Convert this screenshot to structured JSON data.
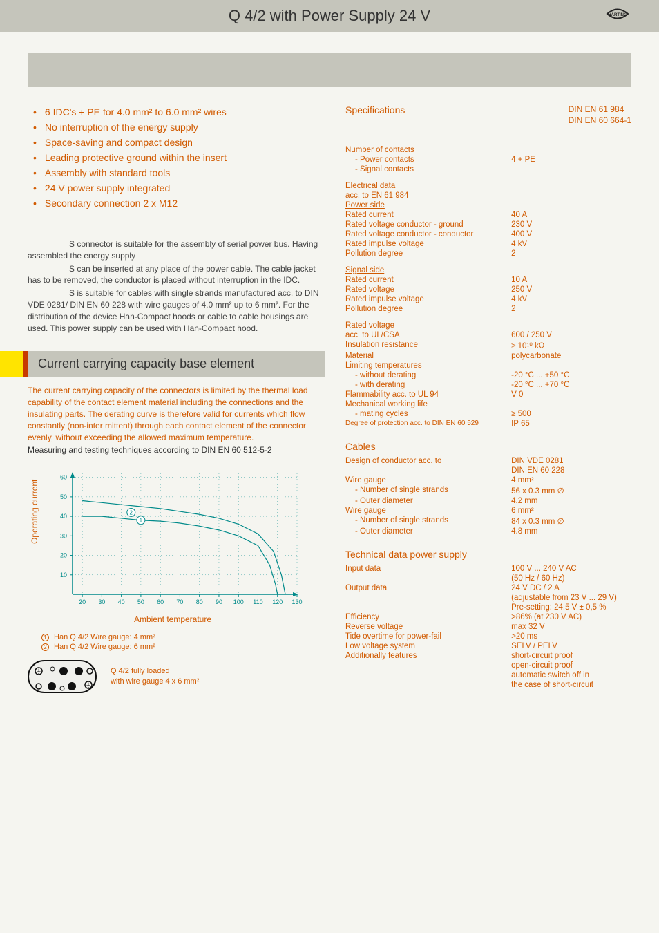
{
  "title": "Q 4/2 with Power Supply 24 V",
  "brand": "HARTING",
  "bullets": [
    "6 IDC's + PE for 4.0 mm² to 6.0 mm² wires",
    "No interruption of the energy supply",
    "Space-saving and compact design",
    "Leading protective ground within the insert",
    "Assembly with standard tools",
    "24 V power supply integrated",
    "Secondary connection 2 x M12"
  ],
  "description": {
    "p1": "S connector is suitable for the assembly of serial power bus. Having assembled the energy supply",
    "p2": "S can be inserted at any place of the power cable. The cable jacket has to be removed, the conductor is placed without interruption in the IDC.",
    "p3": "S is suitable for cables with single strands manufactured acc. to DIN VDE 0281/ DIN EN 60 228 with wire gauges of 4.0 mm² up to 6 mm². For the distribution of the device Han-Compact   hoods or cable to cable housings are used. This power supply can be used with Han-Compact   hood."
  },
  "section_current": {
    "title": "Current carrying capacity base element",
    "para1": "The current carrying capacity of the connectors is limited by the thermal load capability of the contact element material including the connections and the insulating parts. The derating curve is therefore valid for currents which flow constantly (non-inter mittent) through each contact element of the connector evenly, without exceeding the allowed maximum temperature.",
    "para2": "Measuring and testing techniques according to DIN EN 60 512-5-2"
  },
  "chart": {
    "type": "line",
    "y_label": "Operating current",
    "x_label": "Ambient temperature",
    "x_ticks": [
      20,
      30,
      40,
      50,
      60,
      70,
      80,
      90,
      100,
      110,
      120,
      130
    ],
    "y_ticks": [
      10,
      20,
      30,
      40,
      50,
      60
    ],
    "xlim": [
      15,
      130
    ],
    "ylim": [
      0,
      62
    ],
    "series": [
      {
        "label": "② Han   Q 4/2 Wire gauge: 6 mm²",
        "marker_at": [
          45,
          42
        ],
        "points": [
          [
            20,
            48
          ],
          [
            30,
            47
          ],
          [
            40,
            46
          ],
          [
            50,
            45
          ],
          [
            60,
            44
          ],
          [
            70,
            42.5
          ],
          [
            80,
            41
          ],
          [
            90,
            39
          ],
          [
            100,
            36
          ],
          [
            110,
            31
          ],
          [
            118,
            22
          ],
          [
            122,
            10
          ],
          [
            124,
            0
          ]
        ]
      },
      {
        "label": "① Han   Q 4/2 Wire gauge: 4 mm²",
        "marker_at": [
          50,
          38
        ],
        "points": [
          [
            20,
            40
          ],
          [
            30,
            40
          ],
          [
            40,
            39
          ],
          [
            50,
            38
          ],
          [
            60,
            37.5
          ],
          [
            70,
            36.5
          ],
          [
            80,
            35
          ],
          [
            90,
            33
          ],
          [
            100,
            30
          ],
          [
            110,
            25
          ],
          [
            116,
            15
          ],
          [
            119,
            5
          ],
          [
            120,
            0
          ]
        ]
      }
    ],
    "colors": {
      "axis": "#008a8a",
      "grid": "#008a8a",
      "tick_text": "#008a8a",
      "line": "#008a8a",
      "background": "#f5f5f0",
      "marker_fill": "#ffffff",
      "marker_stroke": "#008a8a"
    },
    "tick_fontsize": 9,
    "axis_fontsize": 9,
    "line_width": 1.2
  },
  "chart_legend": [
    {
      "num": "1",
      "text": "Han   Q 4/2 Wire gauge: 4 mm²"
    },
    {
      "num": "2",
      "text": "Han   Q 4/2 Wire gauge: 6 mm²"
    }
  ],
  "connector_caption": {
    "l1": "Q 4/2 fully loaded",
    "l2": "with wire gauge 4 x 6 mm²"
  },
  "spec_std": {
    "title": "Specifications",
    "s1": "DIN EN 61 984",
    "s2": "DIN EN 60 664-1"
  },
  "spec_contacts": {
    "heading": "Number of contacts",
    "rows": [
      {
        "k": "- Power contacts",
        "v": "4 + PE",
        "indent": true
      },
      {
        "k": "- Signal contacts",
        "v": "",
        "indent": true
      }
    ]
  },
  "spec_electrical": {
    "heading": "Electrical data",
    "sub": "acc. to EN 61 984",
    "power": {
      "heading": "Power side",
      "rows": [
        {
          "k": "Rated current",
          "v": "40 A"
        },
        {
          "k": "Rated voltage conductor - ground",
          "v": "230 V"
        },
        {
          "k": "Rated voltage conductor - conductor",
          "v": "400 V"
        },
        {
          "k": "Rated impulse voltage",
          "v": "4 kV"
        },
        {
          "k": "Pollution degree",
          "v": "2"
        }
      ]
    },
    "signal": {
      "heading": "Signal side",
      "rows": [
        {
          "k": "Rated current",
          "v": "10 A"
        },
        {
          "k": "Rated voltage",
          "v": "250 V"
        },
        {
          "k": "Rated impulse voltage",
          "v": "4 kV"
        },
        {
          "k": "Pollution degree",
          "v": "2"
        }
      ]
    }
  },
  "spec_general": [
    {
      "k": "Rated voltage",
      "v": ""
    },
    {
      "k": "acc. to UL/CSA",
      "v": "600 / 250 V"
    },
    {
      "k": "Insulation resistance",
      "v": "≥ 10¹⁰ kΩ"
    },
    {
      "k": "Material",
      "v": "polycarbonate"
    },
    {
      "k": "Limiting temperatures",
      "v": ""
    },
    {
      "k": "- without derating",
      "v": "-20 °C ... +50 °C",
      "indent": true
    },
    {
      "k": "- with derating",
      "v": "-20 °C ... +70 °C",
      "indent": true
    },
    {
      "k": "Flammability acc. to UL 94",
      "v": "V 0"
    },
    {
      "k": "Mechanical working life",
      "v": ""
    },
    {
      "k": "- mating cycles",
      "v": "≥ 500",
      "indent": true
    },
    {
      "k": "Degree of protection acc. to DIN EN 60 529",
      "v": "IP 65",
      "small": true
    }
  ],
  "cables": {
    "title": "Cables",
    "rows": [
      {
        "k": "Design of conductor acc. to",
        "v": "DIN VDE 0281"
      },
      {
        "k": "",
        "v": "DIN EN 60 228"
      },
      {
        "k": "Wire gauge",
        "v": "4 mm²"
      },
      {
        "k": "- Number of single strands",
        "v": "56 x 0.3 mm ∅",
        "indent": true
      },
      {
        "k": "- Outer diameter",
        "v": "4.2 mm",
        "indent": true
      },
      {
        "k": "Wire gauge",
        "v": "6 mm²"
      },
      {
        "k": "- Number of single strands",
        "v": "84 x 0.3 mm ∅",
        "indent": true
      },
      {
        "k": "- Outer diameter",
        "v": "4.8 mm",
        "indent": true
      }
    ]
  },
  "power_supply": {
    "title": "Technical data power supply",
    "rows": [
      {
        "k": "Input data",
        "v": "100 V ... 240 V AC"
      },
      {
        "k": "",
        "v": "(50 Hz / 60 Hz)"
      },
      {
        "k": "Output data",
        "v": "24 V DC / 2 A"
      },
      {
        "k": "",
        "v": "(adjustable from 23 V ... 29 V)"
      },
      {
        "k": "",
        "v": "Pre-setting: 24.5 V ± 0,5 %"
      },
      {
        "k": "Efficiency",
        "v": ">86% (at 230 V AC)"
      },
      {
        "k": "Reverse voltage",
        "v": "max 32 V"
      },
      {
        "k": "Tide overtime for power-fail",
        "v": ">20 ms"
      },
      {
        "k": "Low voltage system",
        "v": "SELV / PELV"
      },
      {
        "k": "Additionally features",
        "v": "short-circuit proof"
      },
      {
        "k": "",
        "v": "open-circuit proof"
      },
      {
        "k": "",
        "v": "automatic switch off in"
      },
      {
        "k": "",
        "v": "the case of short-circuit"
      }
    ]
  }
}
